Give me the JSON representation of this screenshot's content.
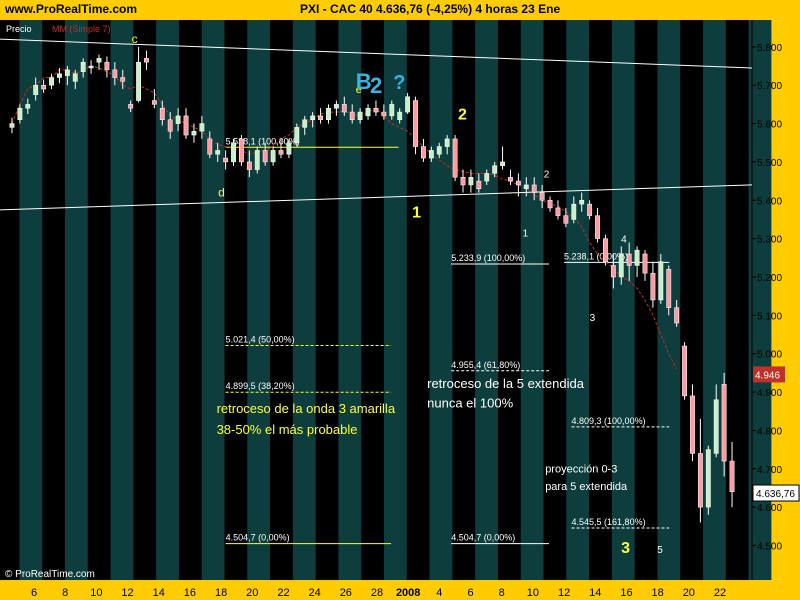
{
  "header": {
    "site": "www.ProRealTime.com",
    "title": "PXI - CAC 40     4.636,76 (-4,25%)     4 horas  23 Ene"
  },
  "legend": {
    "price": "Precio",
    "ma": "MM (Simple 7)"
  },
  "footer": {
    "watermark": "© ProRealTime.com"
  },
  "colors": {
    "background": "#000000",
    "band": "#0d3d3d",
    "up_candle": "#c8f0c8",
    "down_candle": "#ff9aa2",
    "ma_line": "#c03028",
    "axis_text": "#000000",
    "yellow": "#ffff33",
    "cyan": "#33b5e5"
  },
  "chart_data": {
    "type": "candlestick",
    "ylim": [
      4410,
      5870
    ],
    "yticks": [
      "5.800",
      "5.700",
      "5.600",
      "5.500",
      "5.400",
      "5.300",
      "5.200",
      "5.100",
      "5.000",
      "4.900",
      "4.800",
      "4.700",
      "4.600",
      "4.500"
    ],
    "xticks": [
      "6",
      "8",
      "10",
      "12",
      "14",
      "16",
      "18",
      "20",
      "22",
      "24",
      "26",
      "28",
      "2008",
      "4",
      "6",
      "8",
      "10",
      "12",
      "14",
      "16",
      "18",
      "20",
      "22"
    ],
    "last_price_label": "4.636,76",
    "ma_label": "4.946",
    "candles": [
      {
        "o": 5590,
        "h": 5615,
        "l": 5575,
        "c": 5600
      },
      {
        "o": 5610,
        "h": 5650,
        "l": 5600,
        "c": 5640
      },
      {
        "o": 5640,
        "h": 5665,
        "l": 5625,
        "c": 5650
      },
      {
        "o": 5675,
        "h": 5720,
        "l": 5660,
        "c": 5700
      },
      {
        "o": 5700,
        "h": 5715,
        "l": 5680,
        "c": 5690
      },
      {
        "o": 5700,
        "h": 5730,
        "l": 5690,
        "c": 5720
      },
      {
        "o": 5720,
        "h": 5745,
        "l": 5705,
        "c": 5730
      },
      {
        "o": 5725,
        "h": 5750,
        "l": 5700,
        "c": 5740
      },
      {
        "o": 5710,
        "h": 5740,
        "l": 5690,
        "c": 5730
      },
      {
        "o": 5735,
        "h": 5770,
        "l": 5720,
        "c": 5760
      },
      {
        "o": 5745,
        "h": 5765,
        "l": 5730,
        "c": 5750
      },
      {
        "o": 5760,
        "h": 5780,
        "l": 5740,
        "c": 5770
      },
      {
        "o": 5760,
        "h": 5775,
        "l": 5720,
        "c": 5740
      },
      {
        "o": 5740,
        "h": 5760,
        "l": 5700,
        "c": 5720
      },
      {
        "o": 5720,
        "h": 5740,
        "l": 5690,
        "c": 5710
      },
      {
        "o": 5650,
        "h": 5660,
        "l": 5630,
        "c": 5640
      },
      {
        "o": 5660,
        "h": 5800,
        "l": 5655,
        "c": 5760
      },
      {
        "o": 5770,
        "h": 5790,
        "l": 5740,
        "c": 5760
      },
      {
        "o": 5660,
        "h": 5690,
        "l": 5640,
        "c": 5650
      },
      {
        "o": 5640,
        "h": 5660,
        "l": 5595,
        "c": 5610
      },
      {
        "o": 5610,
        "h": 5630,
        "l": 5560,
        "c": 5580
      },
      {
        "o": 5600,
        "h": 5640,
        "l": 5580,
        "c": 5620
      },
      {
        "o": 5620,
        "h": 5640,
        "l": 5560,
        "c": 5570
      },
      {
        "o": 5570,
        "h": 5600,
        "l": 5550,
        "c": 5580
      },
      {
        "o": 5580,
        "h": 5620,
        "l": 5560,
        "c": 5600
      },
      {
        "o": 5560,
        "h": 5580,
        "l": 5510,
        "c": 5520
      },
      {
        "o": 5520,
        "h": 5550,
        "l": 5500,
        "c": 5530
      },
      {
        "o": 5510,
        "h": 5530,
        "l": 5480,
        "c": 5500
      },
      {
        "o": 5500,
        "h": 5560,
        "l": 5490,
        "c": 5550
      },
      {
        "o": 5560,
        "h": 5570,
        "l": 5490,
        "c": 5500
      },
      {
        "o": 5500,
        "h": 5530,
        "l": 5460,
        "c": 5480
      },
      {
        "o": 5480,
        "h": 5540,
        "l": 5470,
        "c": 5530
      },
      {
        "o": 5530,
        "h": 5550,
        "l": 5490,
        "c": 5500
      },
      {
        "o": 5500,
        "h": 5540,
        "l": 5490,
        "c": 5530
      },
      {
        "o": 5530,
        "h": 5560,
        "l": 5510,
        "c": 5520
      },
      {
        "o": 5520,
        "h": 5560,
        "l": 5510,
        "c": 5550
      },
      {
        "o": 5550,
        "h": 5600,
        "l": 5540,
        "c": 5590
      },
      {
        "o": 5590,
        "h": 5620,
        "l": 5570,
        "c": 5610
      },
      {
        "o": 5610,
        "h": 5630,
        "l": 5590,
        "c": 5620
      },
      {
        "o": 5620,
        "h": 5640,
        "l": 5600,
        "c": 5610
      },
      {
        "o": 5610,
        "h": 5650,
        "l": 5600,
        "c": 5640
      },
      {
        "o": 5640,
        "h": 5660,
        "l": 5620,
        "c": 5650
      },
      {
        "o": 5650,
        "h": 5670,
        "l": 5620,
        "c": 5630
      },
      {
        "o": 5630,
        "h": 5650,
        "l": 5600,
        "c": 5610
      },
      {
        "o": 5610,
        "h": 5640,
        "l": 5600,
        "c": 5630
      },
      {
        "o": 5620,
        "h": 5650,
        "l": 5610,
        "c": 5640
      },
      {
        "o": 5640,
        "h": 5660,
        "l": 5620,
        "c": 5630
      },
      {
        "o": 5630,
        "h": 5650,
        "l": 5610,
        "c": 5620
      },
      {
        "o": 5620,
        "h": 5660,
        "l": 5610,
        "c": 5650
      },
      {
        "o": 5610,
        "h": 5640,
        "l": 5600,
        "c": 5630
      },
      {
        "o": 5630,
        "h": 5680,
        "l": 5625,
        "c": 5670
      },
      {
        "o": 5660,
        "h": 5670,
        "l": 5520,
        "c": 5540
      },
      {
        "o": 5540,
        "h": 5560,
        "l": 5500,
        "c": 5510
      },
      {
        "o": 5510,
        "h": 5540,
        "l": 5500,
        "c": 5530
      },
      {
        "o": 5520,
        "h": 5550,
        "l": 5510,
        "c": 5540
      },
      {
        "o": 5540,
        "h": 5570,
        "l": 5520,
        "c": 5560
      },
      {
        "o": 5560,
        "h": 5570,
        "l": 5450,
        "c": 5460
      },
      {
        "o": 5460,
        "h": 5480,
        "l": 5420,
        "c": 5440
      },
      {
        "o": 5440,
        "h": 5480,
        "l": 5420,
        "c": 5460
      },
      {
        "o": 5450,
        "h": 5470,
        "l": 5420,
        "c": 5430
      },
      {
        "o": 5450,
        "h": 5480,
        "l": 5440,
        "c": 5470
      },
      {
        "o": 5470,
        "h": 5500,
        "l": 5460,
        "c": 5490
      },
      {
        "o": 5490,
        "h": 5540,
        "l": 5480,
        "c": 5500
      },
      {
        "o": 5460,
        "h": 5480,
        "l": 5440,
        "c": 5450
      },
      {
        "o": 5450,
        "h": 5470,
        "l": 5410,
        "c": 5440
      },
      {
        "o": 5430,
        "h": 5460,
        "l": 5410,
        "c": 5440
      },
      {
        "o": 5440,
        "h": 5460,
        "l": 5400,
        "c": 5420
      },
      {
        "o": 5420,
        "h": 5440,
        "l": 5380,
        "c": 5400
      },
      {
        "o": 5400,
        "h": 5410,
        "l": 5370,
        "c": 5380
      },
      {
        "o": 5380,
        "h": 5400,
        "l": 5350,
        "c": 5360
      },
      {
        "o": 5360,
        "h": 5380,
        "l": 5330,
        "c": 5340
      },
      {
        "o": 5350,
        "h": 5410,
        "l": 5340,
        "c": 5390
      },
      {
        "o": 5390,
        "h": 5420,
        "l": 5370,
        "c": 5400
      },
      {
        "o": 5390,
        "h": 5400,
        "l": 5350,
        "c": 5360
      },
      {
        "o": 5360,
        "h": 5380,
        "l": 5290,
        "c": 5300
      },
      {
        "o": 5300,
        "h": 5310,
        "l": 5230,
        "c": 5240
      },
      {
        "o": 5230,
        "h": 5260,
        "l": 5170,
        "c": 5200
      },
      {
        "o": 5200,
        "h": 5280,
        "l": 5180,
        "c": 5260
      },
      {
        "o": 5260,
        "h": 5290,
        "l": 5190,
        "c": 5230
      },
      {
        "o": 5230,
        "h": 5280,
        "l": 5200,
        "c": 5270
      },
      {
        "o": 5260,
        "h": 5270,
        "l": 5190,
        "c": 5210
      },
      {
        "o": 5210,
        "h": 5240,
        "l": 5120,
        "c": 5140
      },
      {
        "o": 5140,
        "h": 5260,
        "l": 5130,
        "c": 5240
      },
      {
        "o": 5220,
        "h": 5230,
        "l": 5100,
        "c": 5120
      },
      {
        "o": 5120,
        "h": 5140,
        "l": 5070,
        "c": 5080
      },
      {
        "o": 5020,
        "h": 5030,
        "l": 4880,
        "c": 4890
      },
      {
        "o": 4890,
        "h": 4920,
        "l": 4720,
        "c": 4740
      },
      {
        "o": 4740,
        "h": 4830,
        "l": 4560,
        "c": 4600
      },
      {
        "o": 4600,
        "h": 4760,
        "l": 4580,
        "c": 4750
      },
      {
        "o": 4740,
        "h": 4920,
        "l": 4730,
        "c": 4880
      },
      {
        "o": 4920,
        "h": 4950,
        "l": 4680,
        "c": 4720
      },
      {
        "o": 4720,
        "h": 4770,
        "l": 4600,
        "c": 4640
      }
    ],
    "ma": [
      [
        5600,
        5650,
        5690,
        5700,
        5720,
        5720,
        5740,
        5740,
        5730,
        5740,
        5750,
        5745,
        5735,
        5725,
        5700,
        5690,
        5700,
        5690,
        5680,
        5650,
        5620,
        5610,
        5600,
        5590,
        5580,
        5560,
        5545,
        5540,
        5535,
        5530,
        5520,
        5525,
        5530,
        5540,
        5560,
        5570,
        5590,
        5600,
        5610,
        5625,
        5630,
        5630,
        5632,
        5625,
        5620,
        5630,
        5640,
        5620,
        5600,
        5590,
        5580,
        5560,
        5540,
        5520,
        5505,
        5490,
        5480,
        5475,
        5470,
        5470,
        5470,
        5465,
        5455,
        5450,
        5440,
        5430,
        5415,
        5400,
        5390,
        5385,
        5370,
        5355,
        5330,
        5290,
        5260,
        5240,
        5225,
        5200,
        5190,
        5170,
        5140,
        5100,
        5050,
        5000,
        4960
      ]
    ],
    "trendlines": [
      {
        "x1": 0,
        "y1": 5820,
        "x2": 95,
        "y2": 5745
      },
      {
        "x1": 0,
        "y1": 5375,
        "x2": 95,
        "y2": 5440
      }
    ],
    "fib_levels": [
      {
        "label": "5.538,1 (100,00%)",
        "value": 5538.1,
        "x1": 30,
        "x2": 53,
        "solid": true,
        "yellow": true
      },
      {
        "label": "5.233,9 (100,00%)",
        "value": 5233.9,
        "x1": 60,
        "x2": 73,
        "solid": true,
        "yellow": false
      },
      {
        "label": "5.238,1 (0,00%)",
        "value": 5238.1,
        "x1": 75,
        "x2": 89,
        "solid": true,
        "yellow": false
      },
      {
        "label": "5.021,4 (50,00%)",
        "value": 5021.4,
        "x1": 30,
        "x2": 52,
        "solid": false,
        "yellow": true
      },
      {
        "label": "4.955,4 (61,80%)",
        "value": 4955.4,
        "x1": 60,
        "x2": 73,
        "solid": false,
        "yellow": false
      },
      {
        "label": "4.899,5 (38,20%)",
        "value": 4899.5,
        "x1": 30,
        "x2": 52,
        "solid": false,
        "yellow": true
      },
      {
        "label": "4.809,3 (100,00%)",
        "value": 4809.3,
        "x1": 76,
        "x2": 89,
        "solid": false,
        "yellow": false
      },
      {
        "label": "4.545,5 (161,80%)",
        "value": 4545.5,
        "x1": 76,
        "x2": 89,
        "solid": false,
        "yellow": false
      },
      {
        "label": "4.504,7 (0,00%)",
        "value": 4504.7,
        "x1": 30,
        "x2": 52,
        "solid": true,
        "yellow": true
      },
      {
        "label": "4.504,7 (0,00%)",
        "value": 4504.7,
        "x1": 60,
        "x2": 73,
        "solid": true,
        "yellow": false
      }
    ],
    "annotations": [
      {
        "text": "c",
        "x": 17.5,
        "y": 5810,
        "color": "yellow",
        "size": 12
      },
      {
        "text": "d",
        "x": 29,
        "y": 5410,
        "color": "yellow",
        "size": 12
      },
      {
        "text": "e",
        "x": 47.3,
        "y": 5680,
        "color": "yellow",
        "size": 11
      },
      {
        "text": "B",
        "x": 47.3,
        "y": 5690,
        "color": "cyan",
        "size": 22
      },
      {
        "text": "2",
        "x": 49.2,
        "y": 5680,
        "color": "cyan",
        "size": 22
      },
      {
        "text": "?",
        "x": 52.3,
        "y": 5690,
        "color": "cyan",
        "size": 20
      },
      {
        "text": "2",
        "x": 60.9,
        "y": 5610,
        "color": "yellow",
        "size": 16
      },
      {
        "text": "1",
        "x": 54.8,
        "y": 5355,
        "color": "yellow",
        "size": 16
      },
      {
        "text": "1",
        "x": 69.5,
        "y": 5305,
        "color": "white",
        "size": 10
      },
      {
        "text": "2",
        "x": 72.3,
        "y": 5460,
        "color": "white",
        "size": 10
      },
      {
        "text": "3",
        "x": 78.4,
        "y": 5085,
        "color": "white",
        "size": 10
      },
      {
        "text": "4",
        "x": 82.6,
        "y": 5290,
        "color": "white",
        "size": 10
      },
      {
        "text": "5",
        "x": 87.4,
        "y": 4480,
        "color": "white",
        "size": 10
      },
      {
        "text": "3",
        "x": 82.6,
        "y": 4480,
        "color": "yellow",
        "size": 16
      },
      {
        "text": "retroceso de la onda 3 amarilla",
        "x": 28.8,
        "y": 4845,
        "color": "yellow",
        "size": 13
      },
      {
        "text": "38-50% el más probable",
        "x": 28.8,
        "y": 4790,
        "color": "yellow",
        "size": 13
      },
      {
        "text": "retroceso de la 5 extendida",
        "x": 56.8,
        "y": 4910,
        "color": "white",
        "size": 13
      },
      {
        "text": "nunca el 100%",
        "x": 56.8,
        "y": 4860,
        "color": "white",
        "size": 13
      },
      {
        "text": "proyección 0-3",
        "x": 72.5,
        "y": 4690,
        "color": "white",
        "size": 11
      },
      {
        "text": "para 5 extendida",
        "x": 72.5,
        "y": 4645,
        "color": "white",
        "size": 11
      }
    ]
  }
}
